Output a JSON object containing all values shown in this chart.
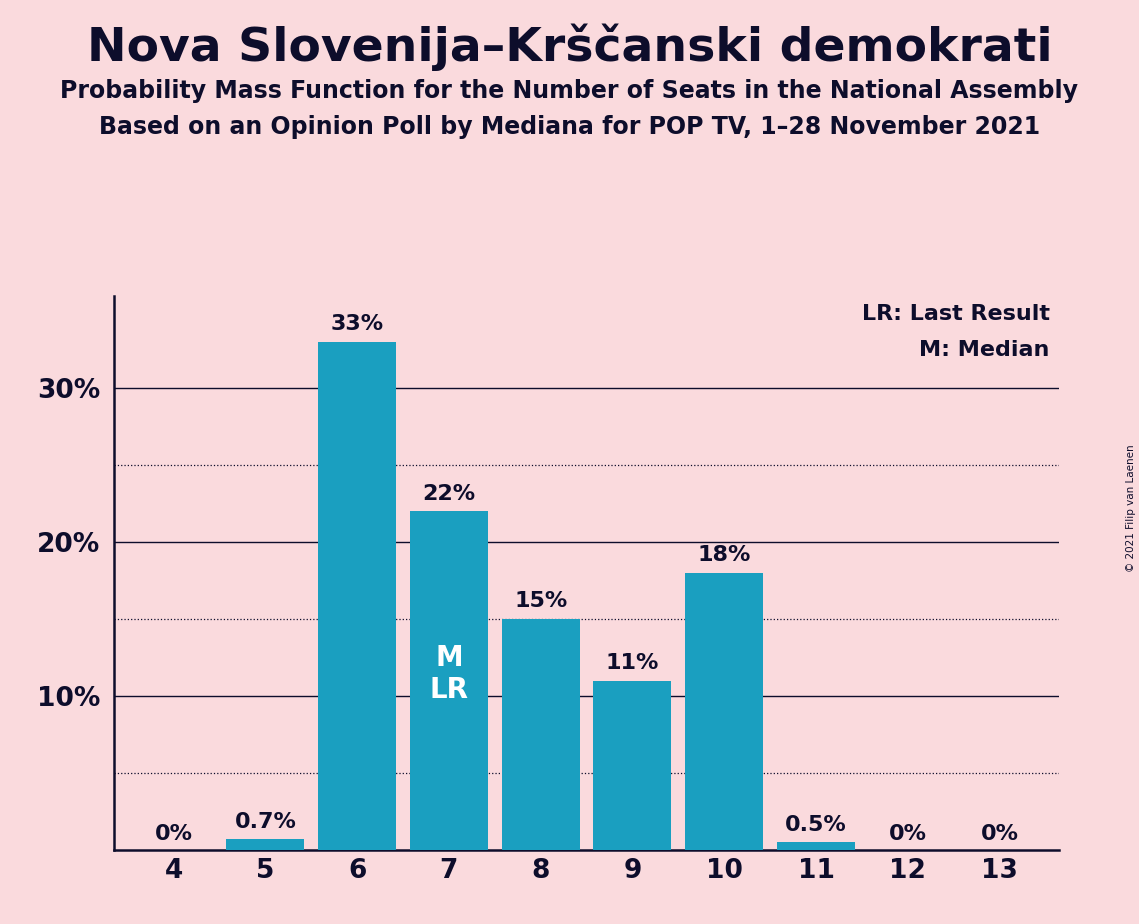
{
  "title": "Nova Slovenija–Krščanski demokrati",
  "subtitle1": "Probability Mass Function for the Number of Seats in the National Assembly",
  "subtitle2": "Based on an Opinion Poll by Mediana for POP TV, 1–28 November 2021",
  "copyright": "© 2021 Filip van Laenen",
  "seats": [
    4,
    5,
    6,
    7,
    8,
    9,
    10,
    11,
    12,
    13
  ],
  "values": [
    0.0,
    0.7,
    33.0,
    22.0,
    15.0,
    11.0,
    18.0,
    0.5,
    0.0,
    0.0
  ],
  "labels": [
    "0%",
    "0.7%",
    "33%",
    "22%",
    "15%",
    "11%",
    "18%",
    "0.5%",
    "0%",
    "0%"
  ],
  "bar_color": "#1a9fc0",
  "background_color": "#fadadd",
  "text_color": "#0d0d2b",
  "median_seat": 7,
  "last_result_seat": 7,
  "legend_lr": "LR: Last Result",
  "legend_m": "M: Median",
  "ylim": [
    0,
    36
  ],
  "yticks": [
    10,
    20,
    30
  ],
  "ytick_labels": [
    "10%",
    "20%",
    "30%"
  ],
  "dotted_grid_values": [
    5,
    15,
    25
  ],
  "solid_grid_values": [
    10,
    20,
    30
  ],
  "title_fontsize": 34,
  "subtitle_fontsize": 17,
  "label_fontsize": 16,
  "tick_fontsize": 19,
  "legend_fontsize": 16,
  "inside_label_color": "#ffffff",
  "inside_label_fontsize": 20
}
